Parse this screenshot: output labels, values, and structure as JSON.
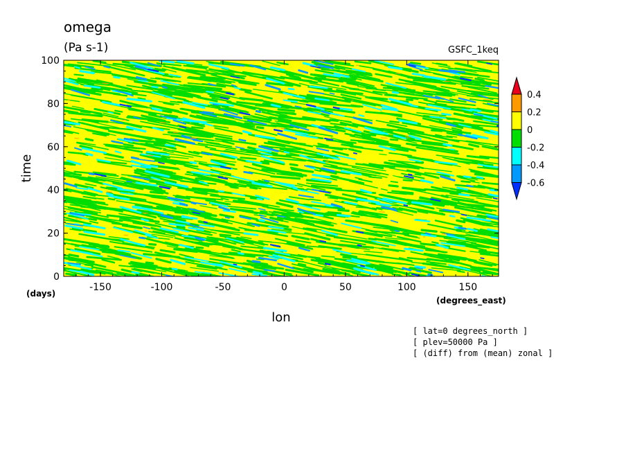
{
  "chart_data": {
    "type": "heatmap",
    "title": "omega",
    "subtitle": "(Pa s-1)",
    "source_label": "GSFC_1keq",
    "xlabel": "lon",
    "ylabel": "time",
    "x_unit": "(degrees_east)",
    "y_unit": "(days)",
    "xlim": [
      -180,
      175
    ],
    "ylim": [
      0,
      100
    ],
    "x_ticks": [
      -150,
      -100,
      -50,
      0,
      50,
      100,
      150
    ],
    "x_tick_labels": [
      "-150",
      "-100",
      "-50",
      "0",
      "50",
      "100",
      "150"
    ],
    "y_ticks": [
      0,
      20,
      40,
      60,
      80,
      100
    ],
    "y_tick_labels": [
      "0",
      "20",
      "40",
      "60",
      "80",
      "100"
    ],
    "colorbar": {
      "labels": [
        "0.4",
        "0.2",
        "0",
        "-0.2",
        "-0.4",
        "-0.6"
      ],
      "colors": [
        "#e8001c",
        "#ff9900",
        "#ffff00",
        "#00dd00",
        "#00ffff",
        "#0099ff",
        "#0030ff"
      ],
      "extend": "both"
    },
    "field_description_levels": [
      -0.6,
      -0.4,
      -0.2,
      0,
      0.2,
      0.4
    ],
    "background_color": "#ffff00"
  },
  "notes": [
    "[ lat=0 degrees_north ]",
    "[ plev=50000 Pa ]",
    "[ (diff) from (mean) zonal ]"
  ]
}
